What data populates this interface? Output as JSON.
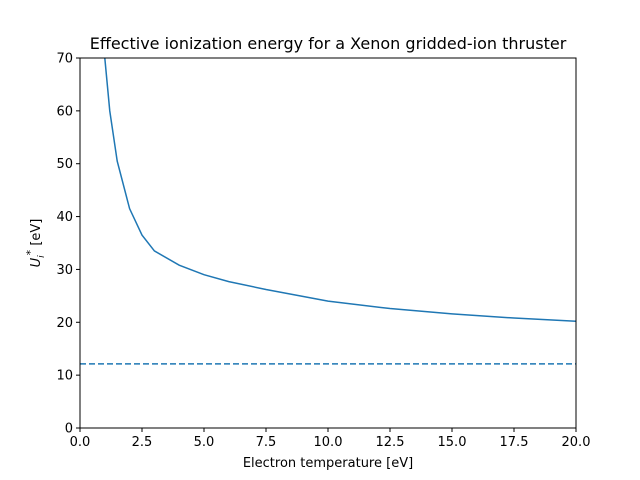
{
  "chart_data": {
    "type": "line",
    "title": "Effective ionization energy for a Xenon gridded-ion thruster",
    "xlabel": "Electron temperature [eV]",
    "ylabel": {
      "base": "U",
      "sub": "i",
      "sup": "*",
      "unit": " [eV]"
    },
    "xlim": [
      0,
      20
    ],
    "ylim": [
      0,
      70
    ],
    "xticks": [
      0,
      2.5,
      5,
      7.5,
      10,
      12.5,
      15,
      17.5,
      20
    ],
    "xtick_labels": [
      "0.0",
      "2.5",
      "5.0",
      "7.5",
      "10.0",
      "12.5",
      "15.0",
      "17.5",
      "20.0"
    ],
    "yticks": [
      0,
      10,
      20,
      30,
      40,
      50,
      60,
      70
    ],
    "ytick_labels": [
      "0",
      "10",
      "20",
      "30",
      "40",
      "50",
      "60",
      "70"
    ],
    "grid": false,
    "color": "#1f77b4",
    "series": [
      {
        "style": "solid",
        "x": [
          1.0,
          1.2,
          1.5,
          2.0,
          2.5,
          3.0,
          4.0,
          5.0,
          6.0,
          7.5,
          10.0,
          12.5,
          15.0,
          17.5,
          20.0
        ],
        "y": [
          70.0,
          60.0,
          50.5,
          41.5,
          36.5,
          33.5,
          30.8,
          29.0,
          27.7,
          26.2,
          24.0,
          22.6,
          21.6,
          20.8,
          20.2
        ]
      },
      {
        "style": "dashed",
        "x": [
          0,
          20
        ],
        "y": [
          12.13,
          12.13
        ]
      }
    ]
  }
}
